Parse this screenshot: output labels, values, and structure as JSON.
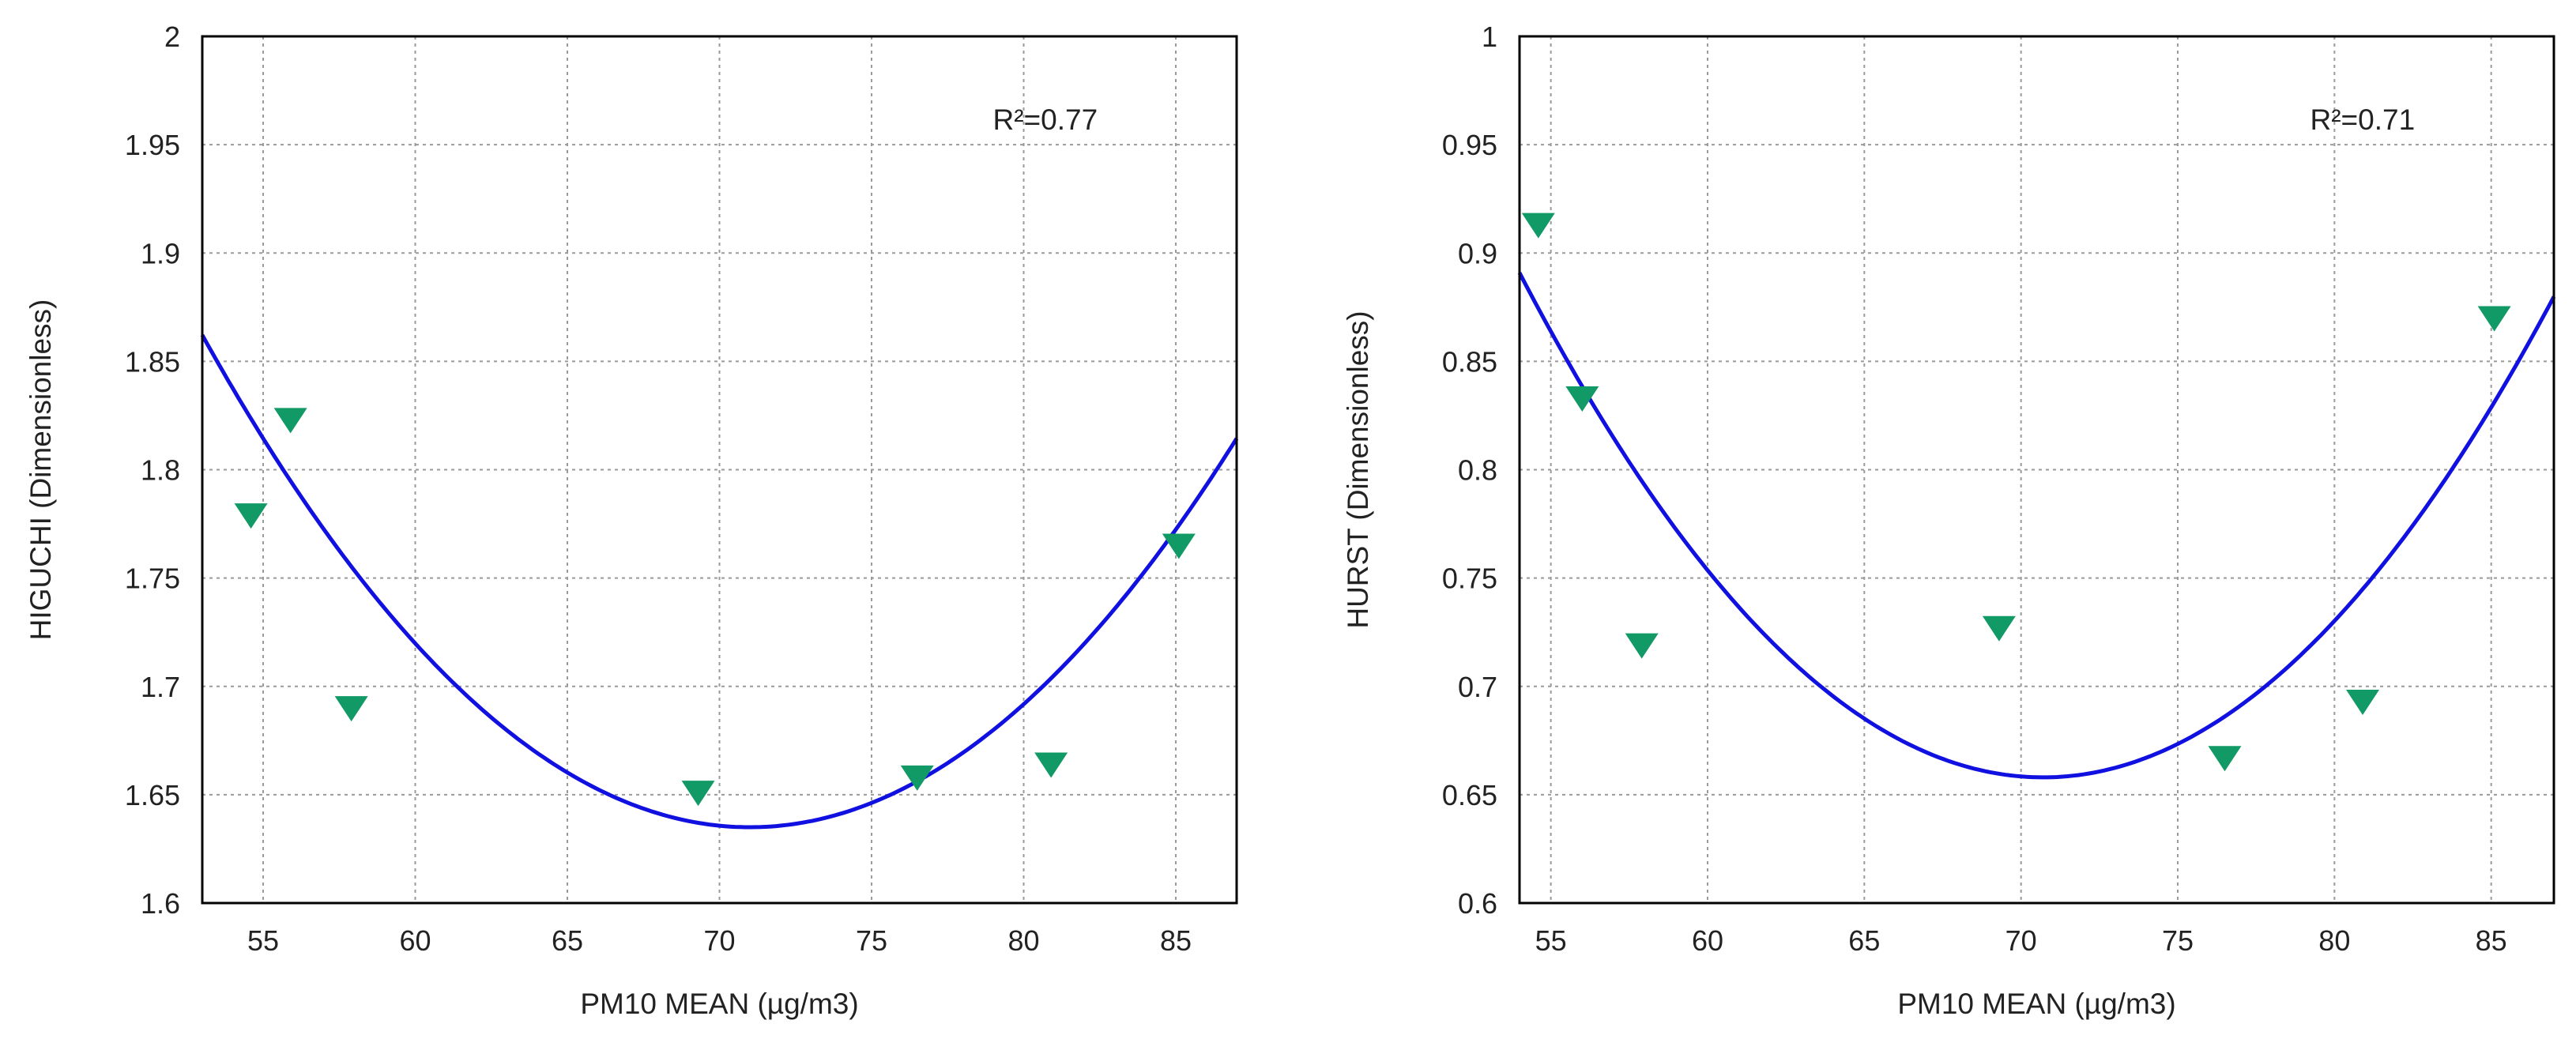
{
  "colors": {
    "fit_line": "#1010e0",
    "marker": "#119966",
    "grid": "#9a9a9a",
    "axis": "#000000",
    "text": "#222222"
  },
  "chart_data": [
    {
      "type": "scatter",
      "name": "higuchi",
      "xlabel": "PM10 MEAN (µg/m3)",
      "ylabel": "HIGUCHI (Dimensionless)",
      "annotation": "R²=0.77",
      "xlim": [
        53,
        87
      ],
      "ylim": [
        1.6,
        2.0
      ],
      "xticks": [
        55,
        60,
        65,
        70,
        75,
        80,
        85
      ],
      "yticks": [
        1.6,
        1.65,
        1.7,
        1.75,
        1.8,
        1.85,
        1.9,
        1.95,
        2.0
      ],
      "ytick_labels": [
        "1.6",
        "1.65",
        "1.7",
        "1.75",
        "1.8",
        "1.85",
        "1.9",
        "1.95",
        "2"
      ],
      "grid": true,
      "marker": "triangle-down",
      "points": [
        {
          "x": 54.6,
          "y": 1.779
        },
        {
          "x": 55.9,
          "y": 1.823
        },
        {
          "x": 57.9,
          "y": 1.69
        },
        {
          "x": 69.3,
          "y": 1.651
        },
        {
          "x": 76.5,
          "y": 1.658
        },
        {
          "x": 80.9,
          "y": 1.664
        },
        {
          "x": 85.1,
          "y": 1.765
        }
      ],
      "fit": {
        "type": "quadratic",
        "a": 0.000701,
        "x0": 71.0,
        "c": 1.635
      }
    },
    {
      "type": "scatter",
      "name": "hurst",
      "xlabel": "PM10 MEAN (µg/m3)",
      "ylabel": "HURST (Dimensionless)",
      "annotation": "R²=0.71",
      "xlim": [
        54,
        87
      ],
      "ylim": [
        0.6,
        1.0
      ],
      "xticks": [
        55,
        60,
        65,
        70,
        75,
        80,
        85
      ],
      "yticks": [
        0.6,
        0.65,
        0.7,
        0.75,
        0.8,
        0.85,
        0.9,
        0.95,
        1.0
      ],
      "ytick_labels": [
        "0.6",
        "0.65",
        "0.7",
        "0.75",
        "0.8",
        "0.85",
        "0.9",
        "0.95",
        "1"
      ],
      "grid": true,
      "marker": "triangle-down",
      "points": [
        {
          "x": 54.6,
          "y": 0.913
        },
        {
          "x": 56.0,
          "y": 0.833
        },
        {
          "x": 57.9,
          "y": 0.719
        },
        {
          "x": 69.3,
          "y": 0.727
        },
        {
          "x": 76.5,
          "y": 0.667
        },
        {
          "x": 80.9,
          "y": 0.693
        },
        {
          "x": 85.1,
          "y": 0.87
        }
      ],
      "fit": {
        "type": "quadratic",
        "a": 0.000835,
        "x0": 70.7,
        "c": 0.658
      }
    }
  ]
}
